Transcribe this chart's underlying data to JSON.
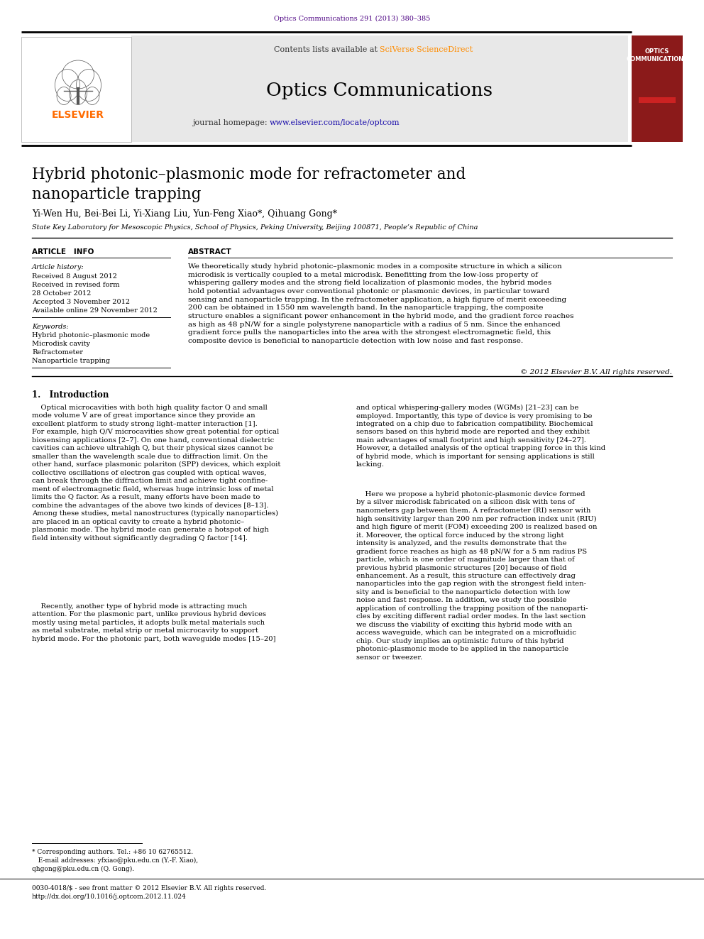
{
  "journal_ref": "Optics Communications 291 (2013) 380–385",
  "journal_ref_color": "#4B0082",
  "header_bg": "#E8E8E8",
  "sciverse_color": "#FF8C00",
  "url_color": "#1a0dab",
  "journal_title": "Optics Communications",
  "paper_title_line1": "Hybrid photonic–plasmonic mode for refractometer and",
  "paper_title_line2": "nanoparticle trapping",
  "authors": "Yi-Wen Hu, Bei-Bei Li, Yi-Xiang Liu, Yun-Feng Xiao*, Qihuang Gong*",
  "affiliation": "State Key Laboratory for Mesoscopic Physics, School of Physics, Peking University, Beijing 100871, People’s Republic of China",
  "article_info_heading": "ARTICLE   INFO",
  "abstract_heading": "ABSTRACT",
  "article_history_label": "Article history:",
  "received_1": "Received 8 August 2012",
  "received_revised": "Received in revised form",
  "revised_date": "28 October 2012",
  "accepted": "Accepted 3 November 2012",
  "available": "Available online 29 November 2012",
  "keywords_label": "Keywords:",
  "keyword1": "Hybrid photonic–plasmonic mode",
  "keyword2": "Microdisk cavity",
  "keyword3": "Refractometer",
  "keyword4": "Nanoparticle trapping",
  "abstract_text": "We theoretically study hybrid photonic–plasmonic modes in a composite structure in which a silicon\nmicrodisk is vertically coupled to a metal microdisk. Benefitting from the low-loss property of\nwhispering gallery modes and the strong field localization of plasmonic modes, the hybrid modes\nhold potential advantages over conventional photonic or plasmonic devices, in particular toward\nsensing and nanoparticle trapping. In the refractometer application, a high figure of merit exceeding\n200 can be obtained in 1550 nm wavelength band. In the nanoparticle trapping, the composite\nstructure enables a significant power enhancement in the hybrid mode, and the gradient force reaches\nas high as 48 pN/W for a single polystyrene nanoparticle with a radius of 5 nm. Since the enhanced\ngradient force pulls the nanoparticles into the area with the strongest electromagnetic field, this\ncomposite device is beneficial to nanoparticle detection with low noise and fast response.",
  "copyright": "© 2012 Elsevier B.V. All rights reserved.",
  "section1_heading": "1.   Introduction",
  "intro_col1_para1": "    Optical microcavities with both high quality factor Q and small\nmode volume V are of great importance since they provide an\nexcellent platform to study strong light–matter interaction [1].\nFor example, high Q/V microcavities show great potential for optical\nbiosensing applications [2–7]. On one hand, conventional dielectric\ncavities can achieve ultrahigh Q, but their physical sizes cannot be\nsmaller than the wavelength scale due to diffraction limit. On the\nother hand, surface plasmonic polariton (SPP) devices, which exploit\ncollective oscillations of electron gas coupled with optical waves,\ncan break through the diffraction limit and achieve tight confine-\nment of electromagnetic field, whereas huge intrinsic loss of metal\nlimits the Q factor. As a result, many efforts have been made to\ncombine the advantages of the above two kinds of devices [8–13].\nAmong these studies, metal nanostructures (typically nanoparticles)\nare placed in an optical cavity to create a hybrid photonic–\nplasmonic mode. The hybrid mode can generate a hotspot of high\nfield intensity without significantly degrading Q factor [14].",
  "intro_col1_para2": "    Recently, another type of hybrid mode is attracting much\nattention. For the plasmonic part, unlike previous hybrid devices\nmostly using metal particles, it adopts bulk metal materials such\nas metal substrate, metal strip or metal microcavity to support\nhybrid mode. For the photonic part, both waveguide modes [15–20]",
  "intro_col2_para1": "and optical whispering-gallery modes (WGMs) [21–23] can be\nemployed. Importantly, this type of device is very promising to be\nintegrated on a chip due to fabrication compatibility. Biochemical\nsensors based on this hybrid mode are reported and they exhibit\nmain advantages of small footprint and high sensitivity [24–27].\nHowever, a detailed analysis of the optical trapping force in this kind\nof hybrid mode, which is important for sensing applications is still\nlacking.",
  "intro_col2_para2": "    Here we propose a hybrid photonic-plasmonic device formed\nby a silver microdisk fabricated on a silicon disk with tens of\nnanometers gap between them. A refractometer (RI) sensor with\nhigh sensitivity larger than 200 nm per refraction index unit (RIU)\nand high figure of merit (FOM) exceeding 200 is realized based on\nit. Moreover, the optical force induced by the strong light\nintensity is analyzed, and the results demonstrate that the\ngradient force reaches as high as 48 pN/W for a 5 nm radius PS\nparticle, which is one order of magnitude larger than that of\nprevious hybrid plasmonic structures [20] because of field\nenhancement. As a result, this structure can effectively drag\nnanoparticles into the gap region with the strongest field inten-\nsity and is beneficial to the nanoparticle detection with low\nnoise and fast response. In addition, we study the possible\napplication of controlling the trapping position of the nanoparti-\ncles by exciting different radial order modes. In the last section\nwe discuss the viability of exciting this hybrid mode with an\naccess waveguide, which can be integrated on a microfluidic\nchip. Our study implies an optimistic future of this hybrid\nphotonic-plasmonic mode to be applied in the nanoparticle\nsensor or tweezer.",
  "footnote_line": "* Corresponding authors. Tel.: +86 10 62765512.",
  "footnote_email1": "   E-mail addresses: yfxiao@pku.edu.cn (Y.-F. Xiao),",
  "footnote_email2": "qhgong@pku.edu.cn (Q. Gong).",
  "footnote_issn": "0030-4018/$ - see front matter © 2012 Elsevier B.V. All rights reserved.",
  "footnote_doi": "http://dx.doi.org/10.1016/j.optcom.2012.11.024",
  "elsevier_color": "#FF6B00",
  "cover_bg": "#8B1A1A",
  "bg_color": "#FFFFFF"
}
